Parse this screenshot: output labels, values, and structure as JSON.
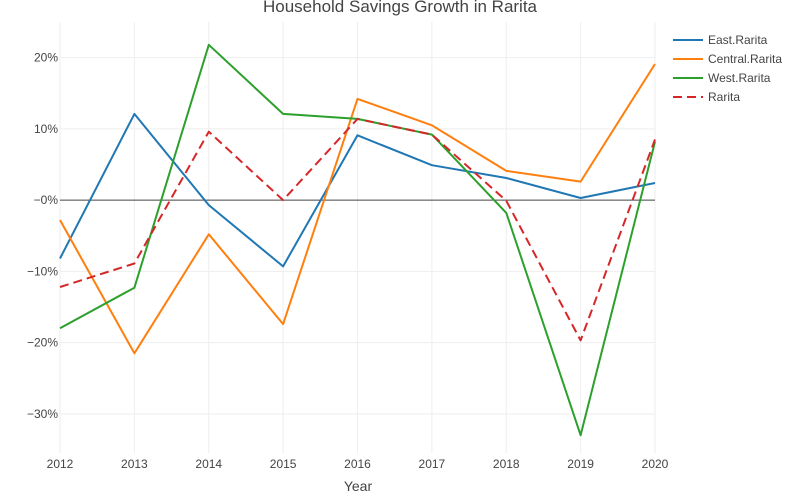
{
  "chart_data": {
    "type": "line",
    "title": "Household Savings Growth in Rarita",
    "xlabel": "Year",
    "ylabel": "",
    "x": [
      2012,
      2013,
      2014,
      2015,
      2016,
      2017,
      2018,
      2019,
      2020
    ],
    "x_tick_labels": [
      "2012",
      "2013",
      "2014",
      "2015",
      "2016",
      "2017",
      "2018",
      "2019",
      "2020"
    ],
    "y_ticks": [
      20,
      10,
      0,
      -10,
      -20,
      -30
    ],
    "y_tick_labels": [
      "20%",
      "10%",
      "−0%",
      "−10%",
      "−20%",
      "−30%"
    ],
    "ylim": [
      -35.5,
      25
    ],
    "grid": true,
    "legend_position": "top-right",
    "series": [
      {
        "name": "East.Rarita",
        "color": "#1f77b4",
        "dash": "solid",
        "values": [
          -8.2,
          12.1,
          -0.7,
          -9.3,
          9.1,
          4.9,
          3.1,
          0.3,
          2.4
        ]
      },
      {
        "name": "Central.Rarita",
        "color": "#ff7f0e",
        "dash": "solid",
        "values": [
          -2.8,
          -21.5,
          -4.8,
          -17.4,
          14.2,
          10.5,
          4.1,
          2.6,
          19.1
        ]
      },
      {
        "name": "West.Rarita",
        "color": "#2ca02c",
        "dash": "solid",
        "values": [
          -18.0,
          -12.3,
          21.8,
          12.1,
          11.4,
          9.2,
          -1.8,
          -33.0,
          8.2
        ]
      },
      {
        "name": "Rarita",
        "color": "#d62728",
        "dash": "dash",
        "values": [
          -12.2,
          -8.9,
          9.6,
          0.0,
          11.4,
          9.2,
          -0.1,
          -19.7,
          8.5
        ]
      }
    ]
  }
}
